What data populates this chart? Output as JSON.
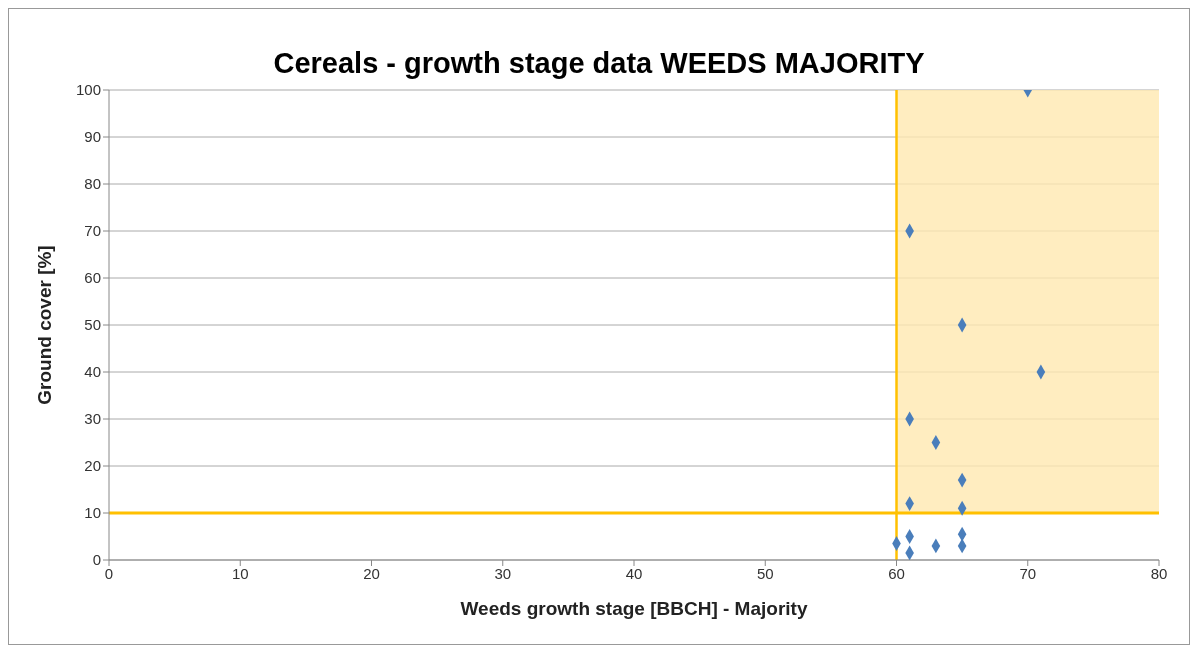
{
  "chart_data": {
    "type": "scatter",
    "title": "Cereals - growth stage data WEEDS MAJORITY",
    "xlabel": "Weeds growth stage [BBCH] - Majority",
    "ylabel": "Ground cover [%]",
    "x": [
      70,
      61,
      65,
      71,
      61,
      63,
      65,
      61,
      65,
      60,
      61,
      61,
      63,
      65,
      65
    ],
    "series": [
      {
        "color": "#4a7ebb",
        "values": [
          100,
          70,
          50,
          40,
          30,
          25,
          17,
          12,
          11,
          3.5,
          5,
          1.5,
          3,
          5.5,
          3
        ]
      }
    ],
    "marker": "diamond",
    "xlim": [
      0,
      80
    ],
    "xticks": [
      0,
      10,
      20,
      30,
      40,
      50,
      60,
      70,
      80
    ],
    "ylim": [
      0,
      100
    ],
    "yticks": [
      0,
      10,
      20,
      30,
      40,
      50,
      60,
      70,
      80,
      90,
      100
    ],
    "grid": "y",
    "ref_lines": [
      {
        "axis": "x",
        "value": 60,
        "color": "#ffc000"
      },
      {
        "axis": "y",
        "value": 10,
        "color": "#ffc000"
      }
    ],
    "bands": [
      {
        "axis": "x",
        "from": 60,
        "to": 80,
        "color": "#ffe9b0"
      }
    ]
  }
}
